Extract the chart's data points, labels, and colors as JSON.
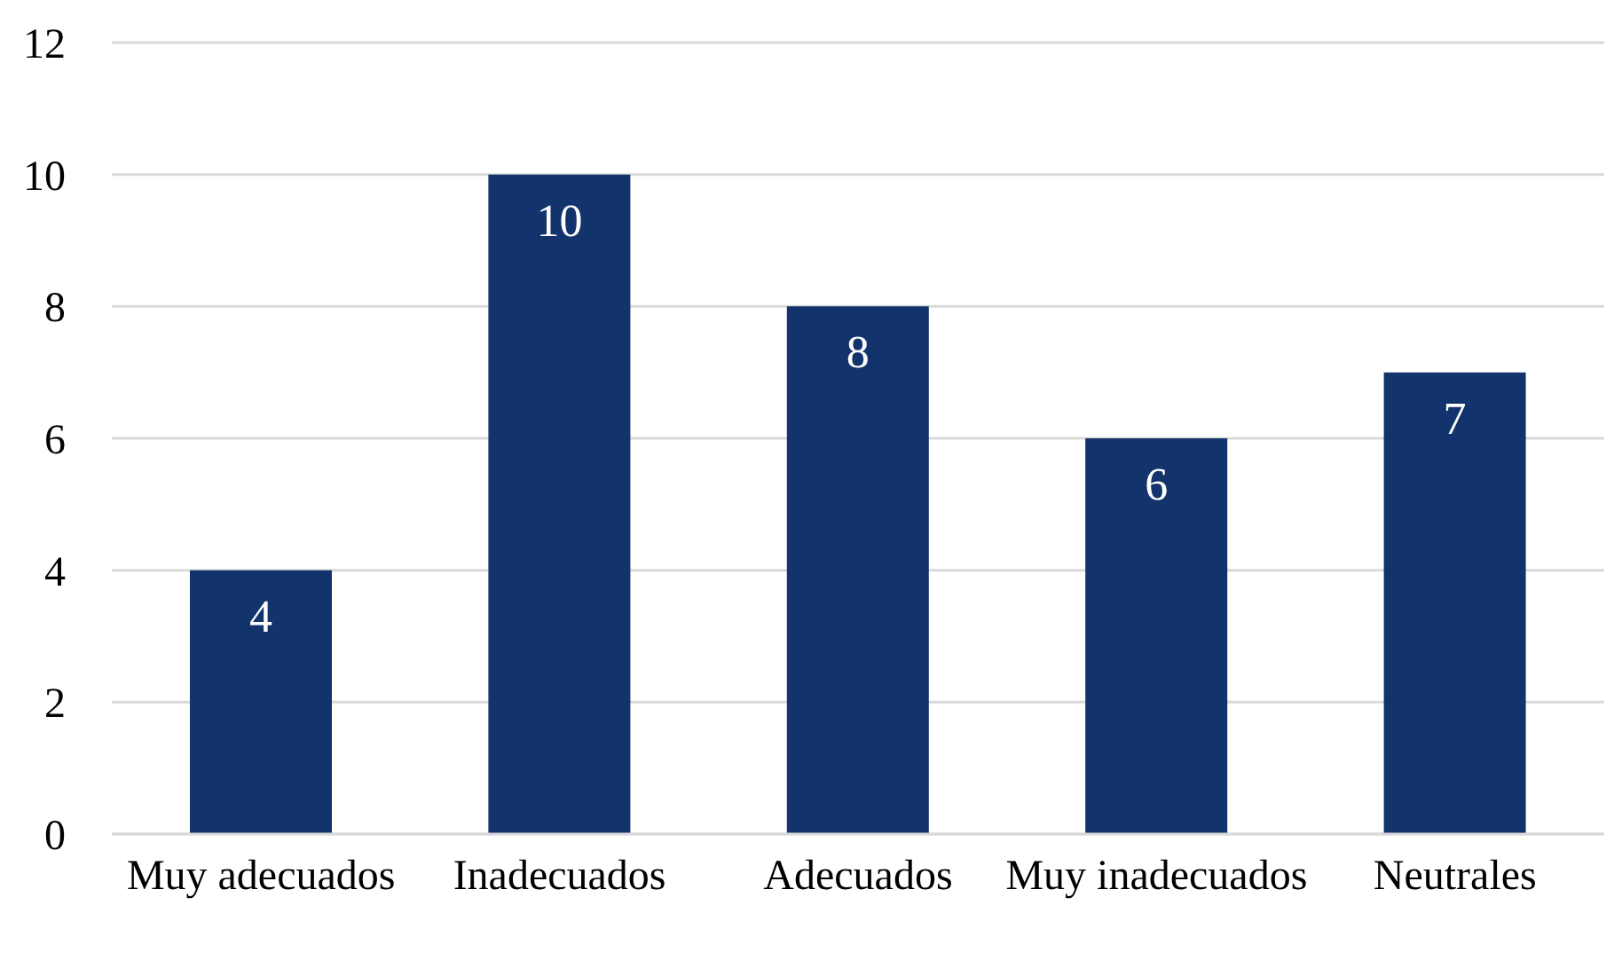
{
  "chart_data": {
    "type": "bar",
    "categories": [
      "Muy adecuados",
      "Inadecuados",
      "Adecuados",
      "Muy inadecuados",
      "Neutrales"
    ],
    "values": [
      4,
      10,
      8,
      6,
      7
    ],
    "color": "#12336b",
    "ylim": [
      0,
      12
    ],
    "yticks": [
      0,
      2,
      4,
      6,
      8,
      10,
      12
    ],
    "grid": "y",
    "data_labels": true
  }
}
